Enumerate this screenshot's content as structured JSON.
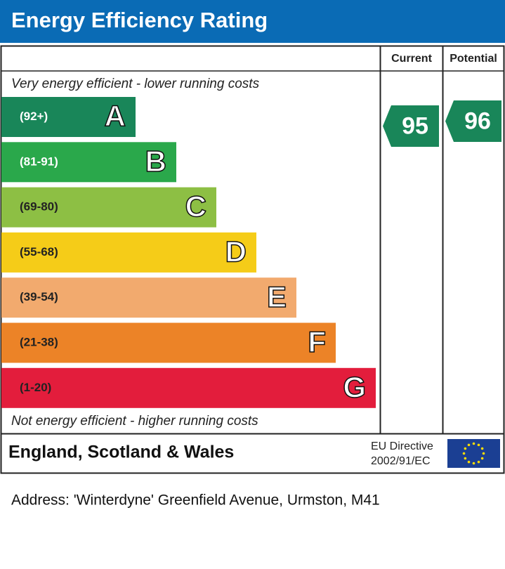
{
  "title": "Energy Efficiency Rating",
  "header": {
    "current": "Current",
    "potential": "Potential"
  },
  "top_note": "Very energy efficient - lower running costs",
  "bands": [
    {
      "range": "(92+)",
      "letter": "A",
      "color": "#198659"
    },
    {
      "range": "(81-91)",
      "letter": "B",
      "color": "#2aa84b"
    },
    {
      "range": "(69-80)",
      "letter": "C",
      "color": "#8dbf44"
    },
    {
      "range": "(55-68)",
      "letter": "D",
      "color": "#f5cc18"
    },
    {
      "range": "(39-54)",
      "letter": "E",
      "color": "#f2aa6e"
    },
    {
      "range": "(21-38)",
      "letter": "F",
      "color": "#ec8327"
    },
    {
      "range": "(1-20)",
      "letter": "G",
      "color": "#e31d3c"
    }
  ],
  "bottom_note": "Not energy efficient - higher running costs",
  "current": {
    "value": 95,
    "color": "#198659"
  },
  "potential": {
    "value": 96,
    "color": "#198659"
  },
  "footer": {
    "region": "England, Scotland & Wales",
    "directive": [
      "EU Directive",
      "2002/91/EC"
    ]
  },
  "address": "Address: 'Winterdyne' Greenfield Avenue, Urmston, M41"
}
